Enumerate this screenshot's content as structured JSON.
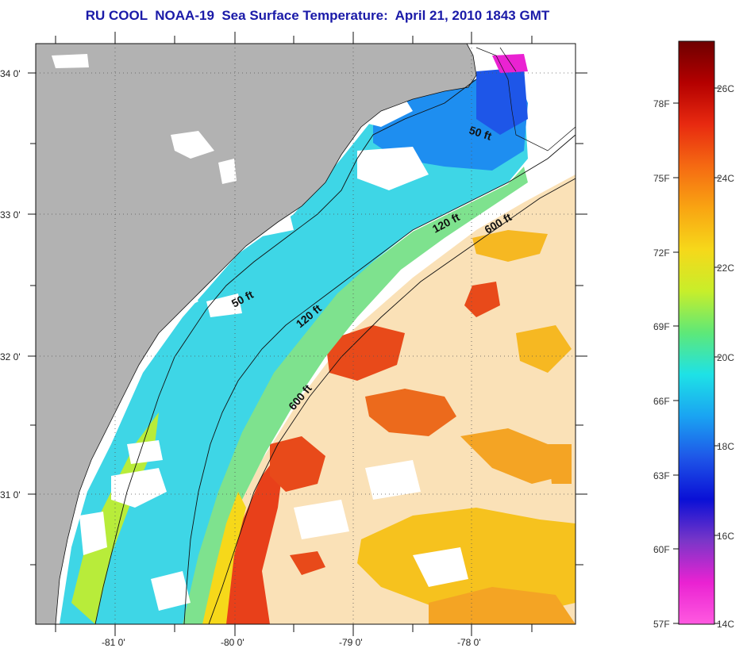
{
  "title": "RU COOL  NOAA-19  Sea Surface Temperature:  April 21, 2010 1843 GMT",
  "map": {
    "lat_labels": [
      "34 0'",
      "33 0'",
      "32 0'",
      "31 0'"
    ],
    "lon_labels": [
      "-81 0'",
      "-80 0'",
      "-79 0'",
      "-78 0'"
    ],
    "depth_contours": [
      {
        "label": "50 ft"
      },
      {
        "label": "50 ft"
      },
      {
        "label": "120 ft"
      },
      {
        "label": "120 ft"
      },
      {
        "label": "600 ft"
      },
      {
        "label": "600 ft"
      }
    ]
  },
  "colorbar": {
    "fahrenheit_labels": [
      "78F",
      "75F",
      "72F",
      "69F",
      "66F",
      "63F",
      "60F",
      "57F"
    ],
    "celsius_labels": [
      "26C",
      "24C",
      "22C",
      "20C",
      "18C",
      "16C",
      "14C"
    ],
    "colors": [
      "#6e0000",
      "#b40000",
      "#e82a10",
      "#f56a12",
      "#f9a412",
      "#f6d81a",
      "#c8ee2a",
      "#5ee878",
      "#1ee2e6",
      "#1aa4f2",
      "#1e56e8",
      "#0a10d6",
      "#7a36c8",
      "#ea22d2",
      "#ff5ae0"
    ]
  }
}
